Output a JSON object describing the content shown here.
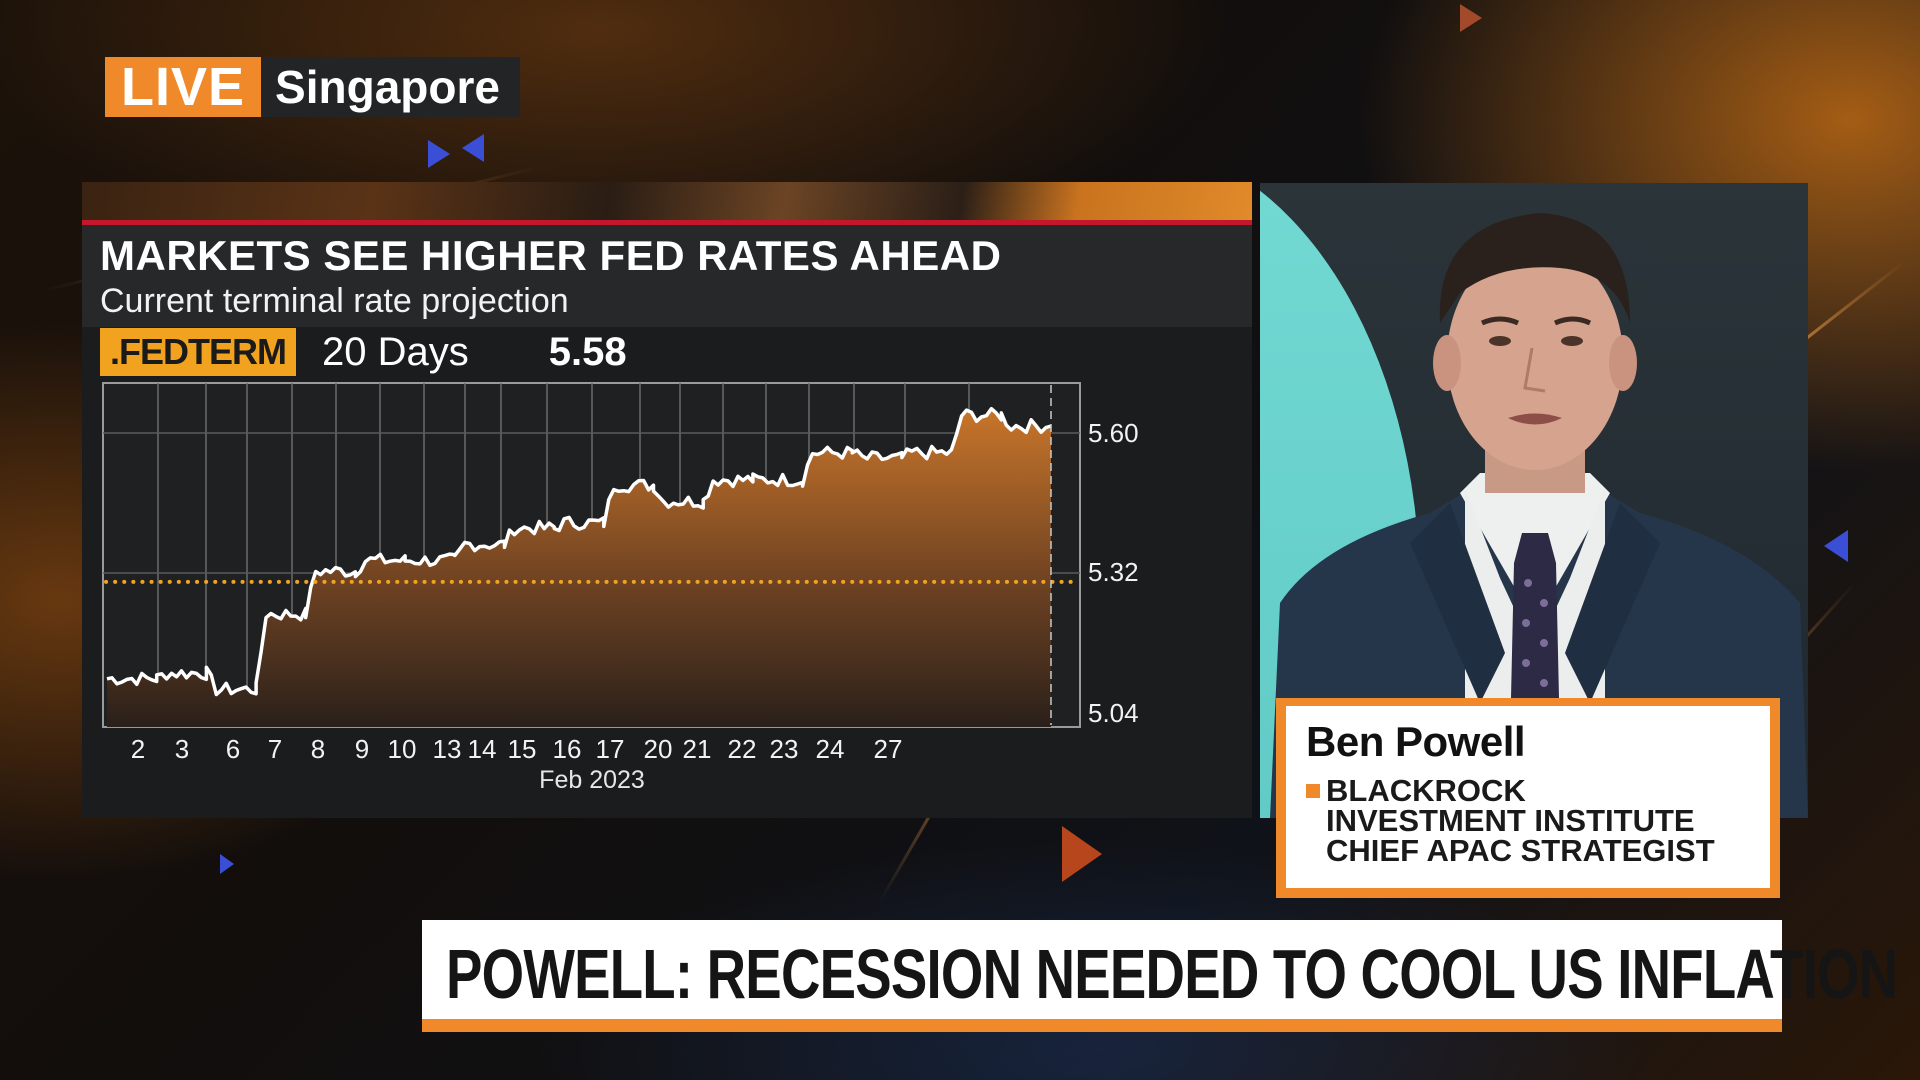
{
  "live_bug": {
    "badge": "LIVE",
    "location": "Singapore",
    "badge_color": "#f0892a"
  },
  "chart_panel": {
    "title": "MARKETS SEE HIGHER FED RATES AHEAD",
    "subtitle": "Current terminal rate projection",
    "ticker": ".FEDTERM",
    "period": "20 Days",
    "last_value": "5.58",
    "accent_line_color": "#c4172b",
    "ticker_color": "#f1a21f"
  },
  "chart_data": {
    "type": "area",
    "title": "MARKETS SEE HIGHER FED RATES AHEAD",
    "subtitle": "Current terminal rate projection",
    "series_name": ".FEDTERM",
    "period": "20 Days",
    "last_value": 5.58,
    "xlabel": "Feb 2023",
    "ylabel": "",
    "categories": [
      "2",
      "3",
      "6",
      "7",
      "8",
      "9",
      "10",
      "13",
      "14",
      "15",
      "16",
      "17",
      "20",
      "21",
      "22",
      "23",
      "24",
      "27"
    ],
    "yticks": [
      5.6,
      5.32,
      5.04
    ],
    "ylim": [
      5.02,
      5.66
    ],
    "reference_line": {
      "value": 5.29,
      "style": "dotted",
      "color": "#f1a21f"
    },
    "grid": true,
    "line_color": "#ffffff",
    "fill_color": "#c8752a",
    "series": [
      {
        "name": ".FEDTERM",
        "x": [
          "1",
          "2",
          "3",
          "6",
          "7",
          "8",
          "9",
          "10",
          "13",
          "14",
          "15",
          "16",
          "17",
          "20",
          "21",
          "22",
          "23",
          "24",
          "27"
        ],
        "values": [
          5.11,
          5.12,
          5.09,
          5.23,
          5.31,
          5.33,
          5.33,
          5.36,
          5.39,
          5.4,
          5.47,
          5.44,
          5.48,
          5.48,
          5.53,
          5.52,
          5.53,
          5.6,
          5.58
        ]
      }
    ]
  },
  "guest": {
    "name": "Ben Powell",
    "title_lines": [
      "BLACKROCK",
      "INVESTMENT INSTITUTE",
      "CHIEF APAC STRATEGIST"
    ]
  },
  "headline": {
    "text": "POWELL: RECESSION NEEDED TO COOL US INFLATION",
    "bar_color": "#f0892a"
  }
}
